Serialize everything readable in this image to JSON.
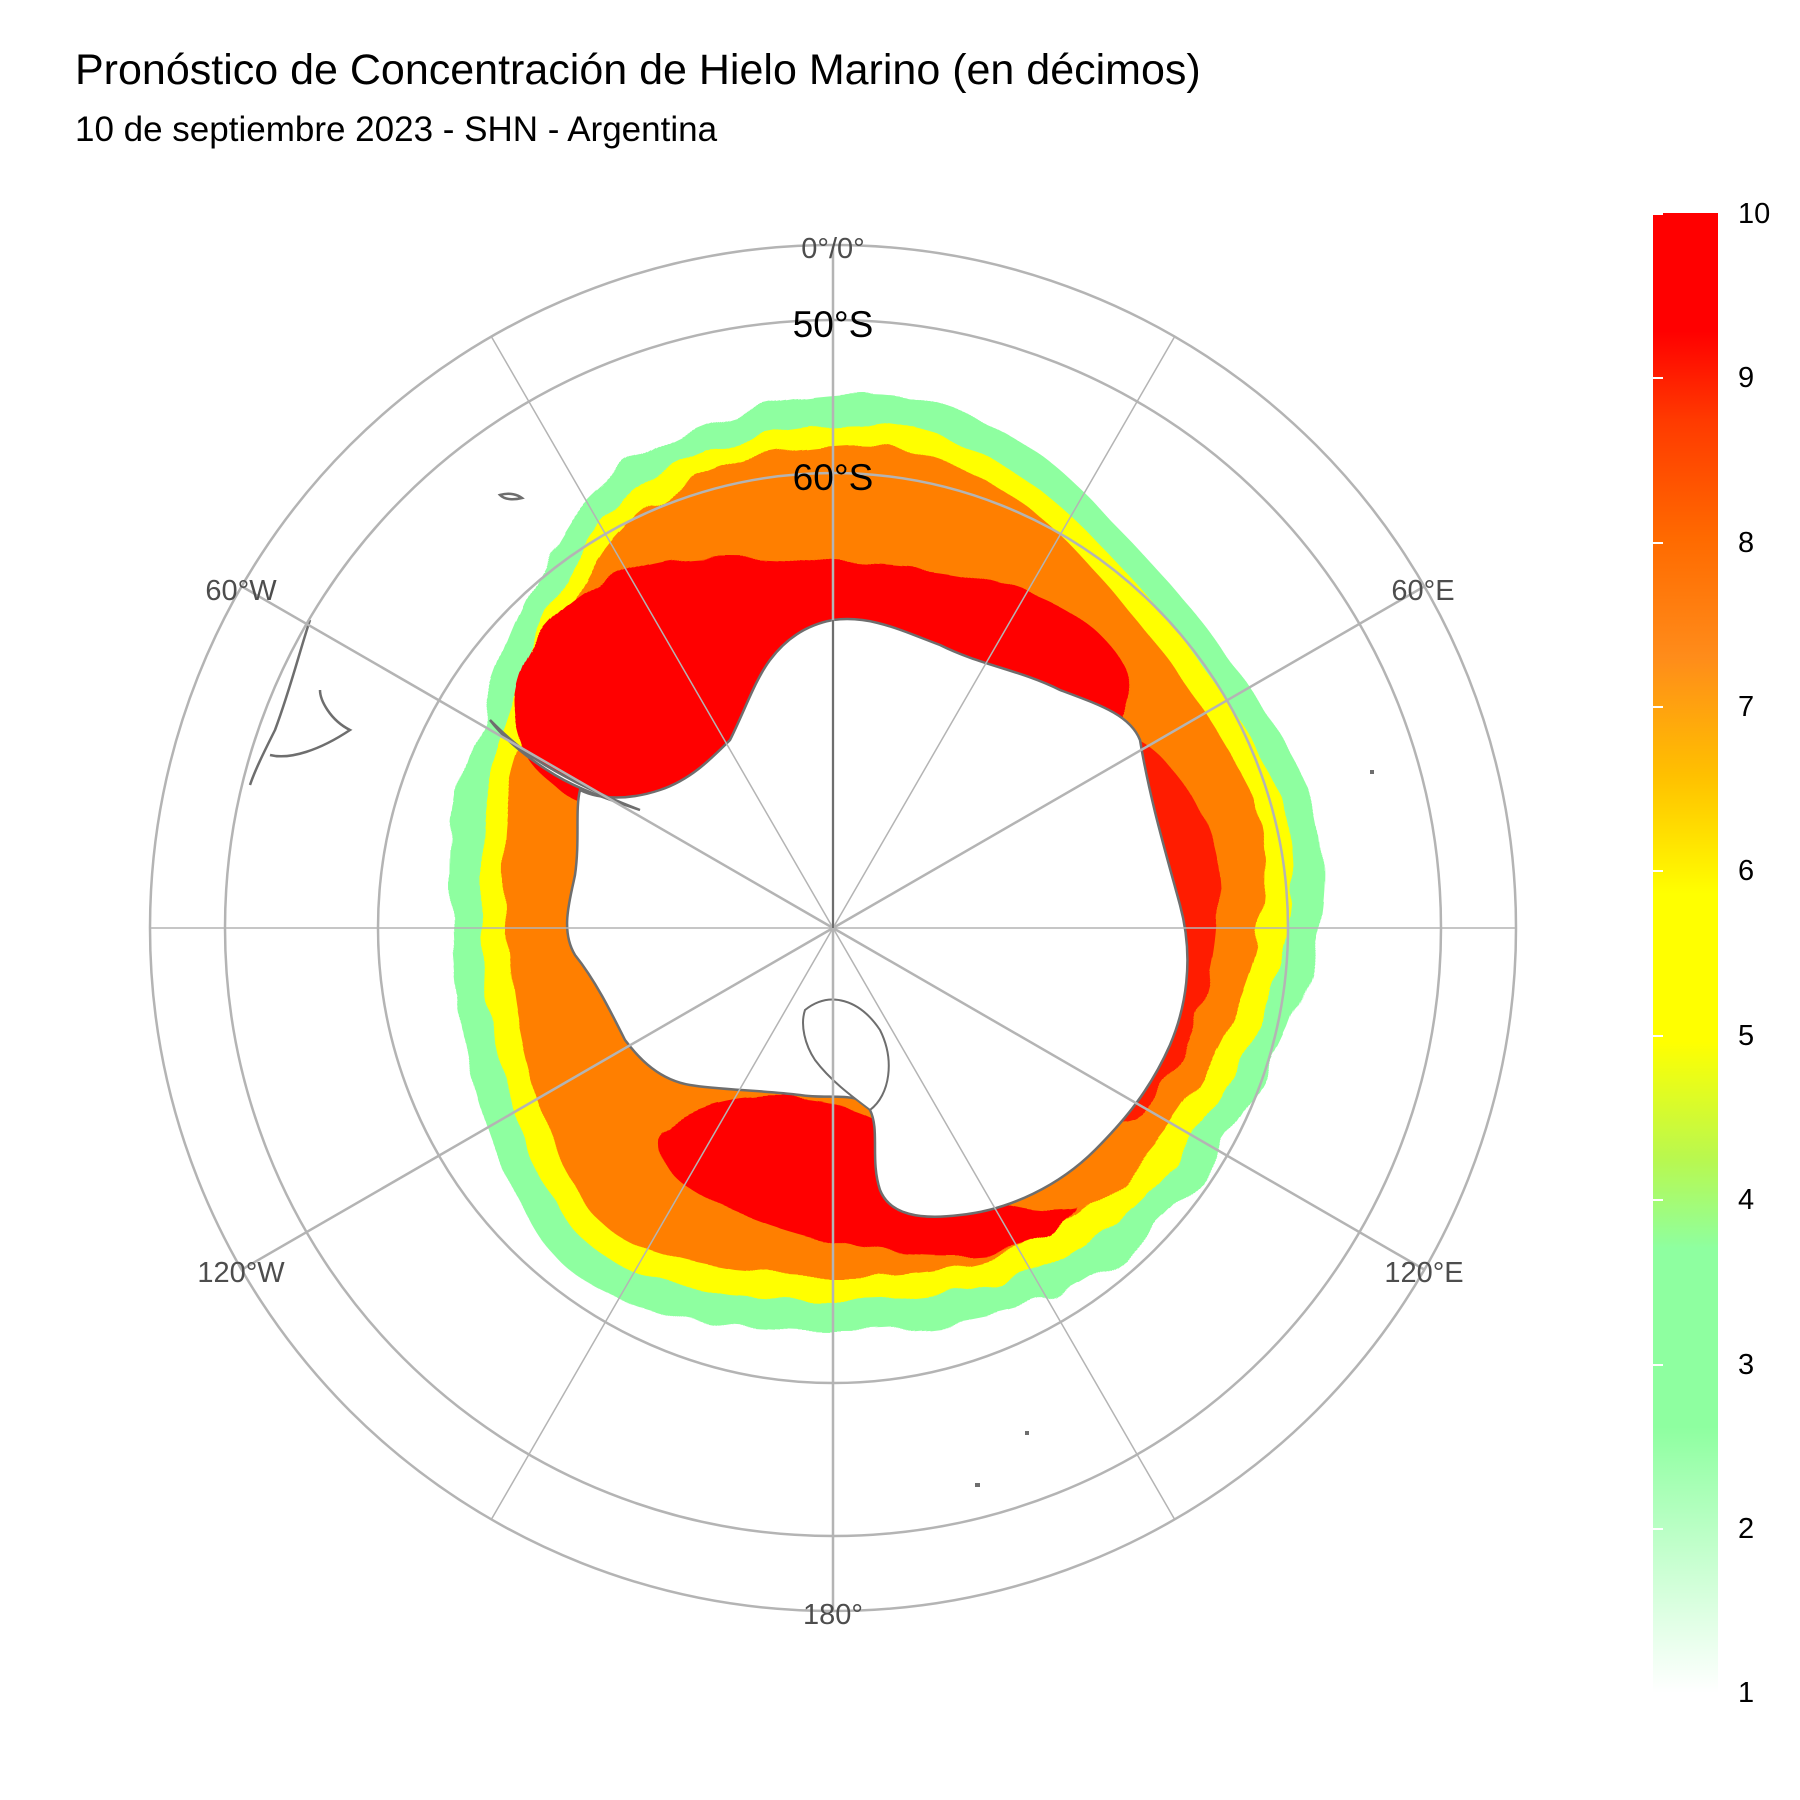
{
  "title": "Pronóstico de Concentración de Hielo Marino (en décimos)",
  "subtitle": "10 de septiembre 2023 - SHN - Argentina",
  "map": {
    "projection": "south-polar-stereographic",
    "center_longitude_top": 0,
    "longitude_labels": [
      "0°/0°",
      "60°E",
      "120°E",
      "180°",
      "120°W",
      "60°W"
    ],
    "latitude_labels": [
      "50°S",
      "60°S"
    ],
    "graticule_color": "#b4b4b4",
    "coastline_color": "#6e6e6e"
  },
  "legend": {
    "type": "colorbar",
    "min": 1,
    "max": 10,
    "ticks": [
      "1",
      "2",
      "3",
      "4",
      "5",
      "6",
      "7",
      "8",
      "9",
      "10"
    ],
    "colors": {
      "1": "#ffffff",
      "3": "#8effa0",
      "5": "#ffff00",
      "7": "#ff8c1a",
      "10": "#ff0000"
    }
  }
}
